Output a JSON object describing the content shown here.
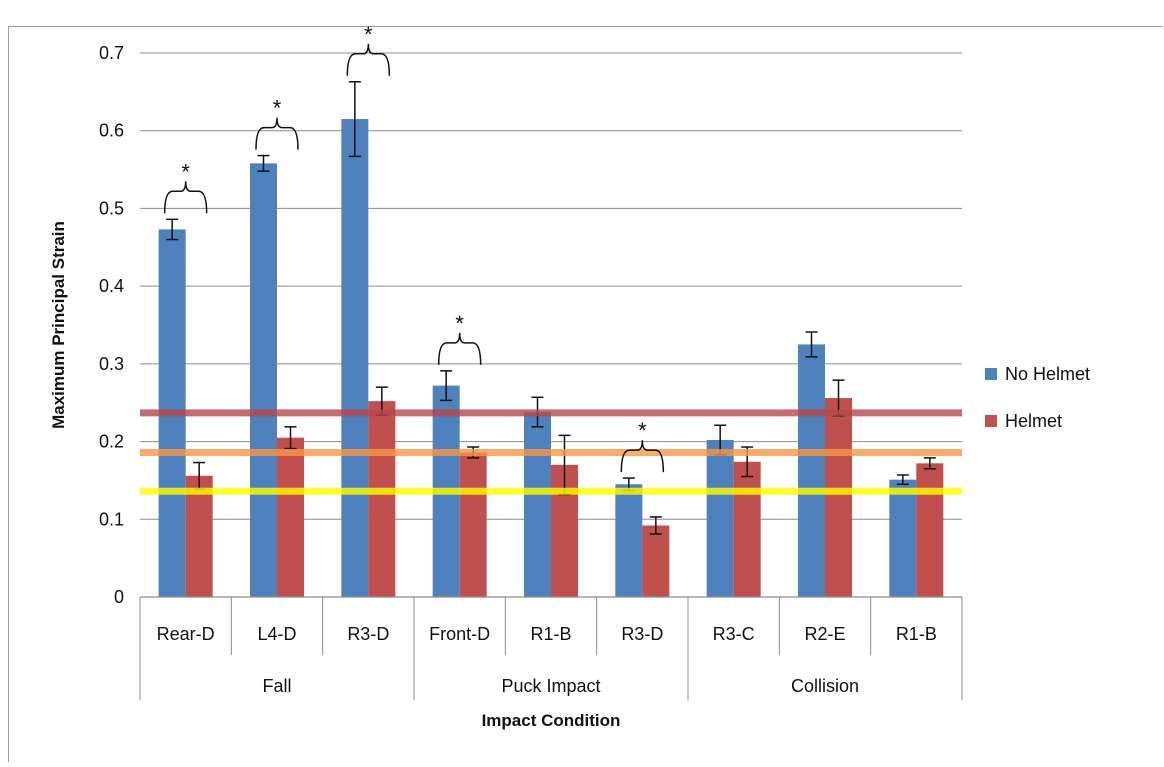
{
  "chart_data": {
    "type": "bar",
    "xlabel": "Impact Condition",
    "ylabel": "Maximum Principal Strain",
    "ylim": [
      0,
      0.7
    ],
    "yticks": [
      "0",
      "0.1",
      "0.2",
      "0.3",
      "0.4",
      "0.5",
      "0.6",
      "0.7"
    ],
    "grid": true,
    "legend_position": "right",
    "categories": [
      "Rear-D",
      "L4-D",
      "R3-D",
      "Front-D",
      "R1-B",
      "R3-D",
      "R3-C",
      "R2-E",
      "R1-B"
    ],
    "groups": [
      {
        "label": "Fall",
        "start": 0,
        "end": 2
      },
      {
        "label": "Puck Impact",
        "start": 3,
        "end": 5
      },
      {
        "label": "Collision",
        "start": 6,
        "end": 8
      }
    ],
    "series": [
      {
        "name": "No Helmet",
        "color": "#4f81bd",
        "values": [
          0.473,
          0.558,
          0.615,
          0.272,
          0.238,
          0.145,
          0.202,
          0.325,
          0.151
        ],
        "errors": [
          0.013,
          0.01,
          0.048,
          0.019,
          0.019,
          0.008,
          0.019,
          0.016,
          0.006
        ]
      },
      {
        "name": "Helmet",
        "color": "#c0504d",
        "values": [
          0.156,
          0.205,
          0.252,
          0.186,
          0.17,
          0.092,
          0.174,
          0.256,
          0.172
        ],
        "errors": [
          0.017,
          0.014,
          0.018,
          0.007,
          0.038,
          0.011,
          0.019,
          0.023,
          0.007
        ]
      }
    ],
    "thresholds": [
      {
        "value": 0.237,
        "color": "#b5474b"
      },
      {
        "value": 0.186,
        "color": "#f79646"
      },
      {
        "value": 0.136,
        "color": "#ffff00"
      }
    ],
    "significance": [
      {
        "index": 0,
        "label": "*"
      },
      {
        "index": 1,
        "label": "*"
      },
      {
        "index": 2,
        "label": "*"
      },
      {
        "index": 3,
        "label": "*"
      },
      {
        "index": 5,
        "label": "*"
      }
    ]
  }
}
